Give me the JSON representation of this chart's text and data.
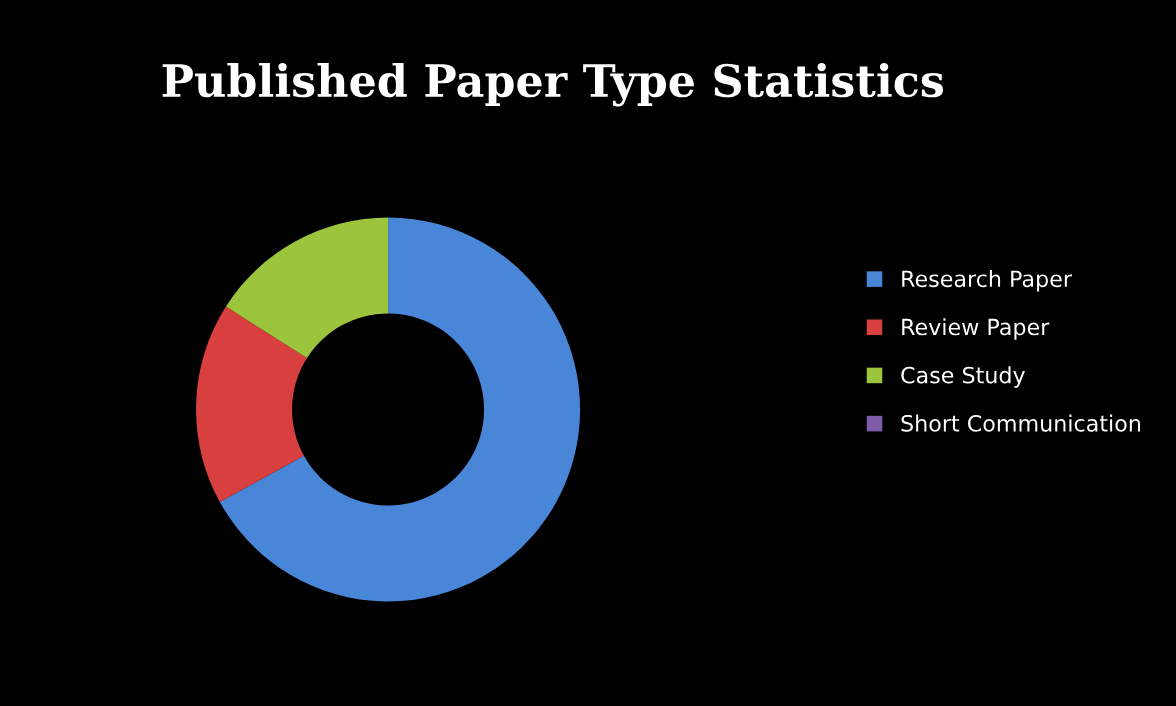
{
  "chart_data": {
    "type": "donut",
    "title": "Published Paper Type Statistics",
    "categories": [
      "Research Paper",
      "Review Paper",
      "Case Study",
      "Short Communication"
    ],
    "values": [
      67,
      17,
      16,
      0
    ],
    "colors": [
      "#4a86d8",
      "#d84040",
      "#9cc43c",
      "#7f5ca8"
    ],
    "legend": "right"
  }
}
